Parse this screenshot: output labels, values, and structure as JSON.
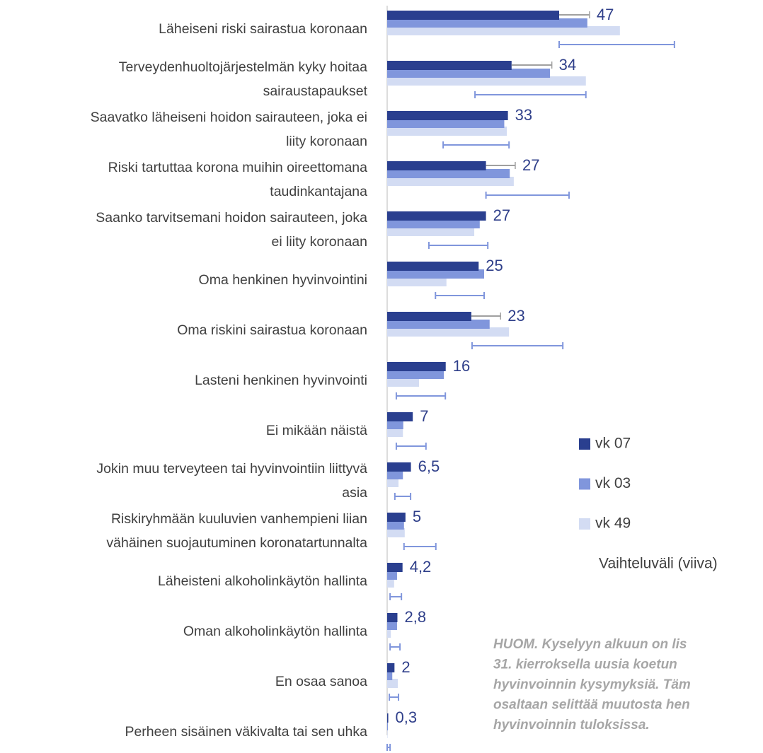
{
  "chart_data": {
    "type": "hbar",
    "categories": [
      [
        "Läheiseni riski sairastua koronaan"
      ],
      [
        "Terveydenhuoltojärjestelmän kyky hoitaa",
        "sairaustapaukset"
      ],
      [
        "Saavatko läheiseni hoidon sairauteen, joka ei",
        "liity koronaan"
      ],
      [
        "Riski tartuttaa korona muihin oireettomana",
        "taudinkantajana"
      ],
      [
        "Saanko tarvitsemani hoidon sairauteen, joka",
        "ei liity koronaan"
      ],
      [
        "Oma henkinen hyvinvointini"
      ],
      [
        "Oma riskini sairastua koronaan"
      ],
      [
        "Lasteni henkinen hyvinvointi"
      ],
      [
        "Ei mikään näistä"
      ],
      [
        "Jokin muu terveyteen tai hyvinvointiin liittyvä",
        "asia"
      ],
      [
        "Riskiryhmään kuuluvien vanhempieni liian",
        "vähäinen suojautuminen koronatartunnalta"
      ],
      [
        "Läheisteni alkoholinkäytön hallinta"
      ],
      [
        "Oman alkoholinkäytön hallinta"
      ],
      [
        "En osaa sanoa"
      ],
      [
        "Perheen sisäinen väkivalta tai sen uhka"
      ]
    ],
    "series": [
      {
        "name": "vk 07",
        "color": "#2a3f8f",
        "values": [
          47,
          34,
          33,
          27,
          27,
          25,
          23,
          16,
          7,
          6.5,
          5,
          4.2,
          2.8,
          2,
          0.3
        ],
        "value_labels": [
          "47",
          "34",
          "33",
          "27",
          "27",
          "25",
          "23",
          "16",
          "7",
          "6,5",
          "5",
          "4,2",
          "2,8",
          "2",
          "0,3"
        ],
        "whisker_high": [
          55.3,
          45,
          null,
          35,
          null,
          null,
          31,
          null,
          null,
          null,
          null,
          null,
          null,
          null,
          null
        ]
      },
      {
        "name": "vk 03",
        "color": "#8096dc",
        "values": [
          54.7,
          44.5,
          32,
          33.5,
          25.3,
          26.5,
          28,
          15.5,
          4.4,
          4.3,
          4.6,
          2.7,
          2.7,
          1.4,
          0.2
        ]
      },
      {
        "name": "vk 49",
        "color": "#d3dcf3",
        "values": [
          63.6,
          54.3,
          32.7,
          34.6,
          23.8,
          16.2,
          33.3,
          8.7,
          4.3,
          3.1,
          4.8,
          1.9,
          1,
          2.9,
          0.1
        ]
      }
    ],
    "range_title": "Vaihteluväli (viiva)",
    "range_color": "#8096dc",
    "ranges": [
      [
        47,
        78.5
      ],
      [
        24,
        54.3
      ],
      [
        15.3,
        33.3
      ],
      [
        27,
        49.7
      ],
      [
        11.4,
        27.5
      ],
      [
        13.2,
        26.5
      ],
      [
        23.2,
        48
      ],
      [
        2.5,
        15.9
      ],
      [
        2.5,
        10.6
      ],
      [
        2.1,
        6.4
      ],
      [
        4.6,
        13.3
      ],
      [
        0.8,
        3.9
      ],
      [
        0.8,
        3.5
      ],
      [
        0.6,
        3.1
      ],
      [
        0,
        0.8
      ]
    ],
    "xlim": [
      0,
      100
    ],
    "annotation": [
      "HUOM. Kyselyyn alkuun on lis",
      "31. kierroksella uusia koetun",
      "hyvinvoinnin kysymyksiä. Täm",
      "osaltaan selittää muutosta hen",
      "hyvinvoinnin tuloksissa."
    ]
  }
}
